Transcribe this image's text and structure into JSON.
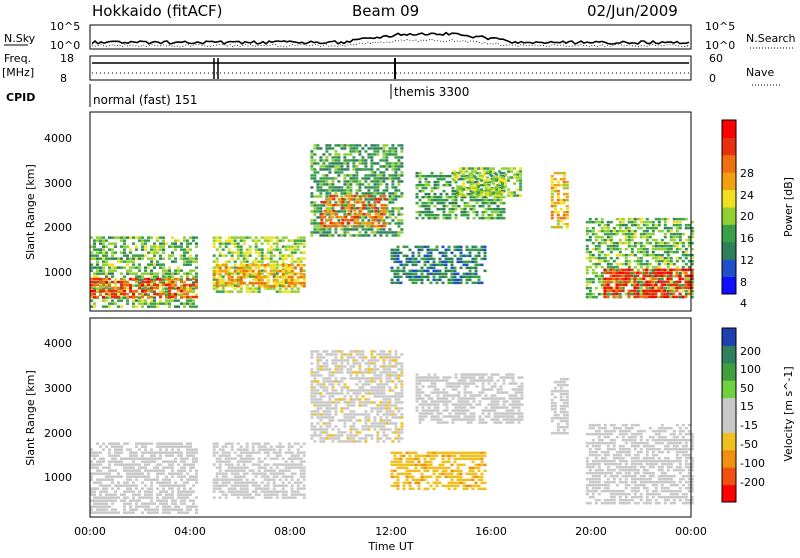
{
  "header": {
    "radar": "Hokkaido (fitACF)",
    "beam": "Beam 09",
    "date": "02/Jun/2009"
  },
  "sky_panel": {
    "left_label": "N.Sky",
    "left_ticks": [
      "10^5",
      "10^0"
    ],
    "right_ticks": [
      "10^5",
      "10^0"
    ],
    "right_label": "N.Search"
  },
  "freq_panel": {
    "left_label_line1": "Freq.",
    "left_label_line2": "[MHz]",
    "left_ticks": [
      "18",
      "8"
    ],
    "right_ticks": [
      "60",
      "0"
    ],
    "right_label": "Nave"
  },
  "cpid": {
    "label": "CPID",
    "modes": [
      {
        "start_hour": 0,
        "text": "normal (fast) 151"
      },
      {
        "start_hour": 12,
        "text": "themis 3300"
      }
    ]
  },
  "x_axis": {
    "ticks": [
      "00:00",
      "04:00",
      "08:00",
      "12:00",
      "16:00",
      "20:00",
      "00:00"
    ],
    "label": "Time UT",
    "range_hours": [
      0,
      24
    ]
  },
  "power_panel": {
    "ylabel": "Slant Range [km]",
    "yticks": [
      "4000",
      "3000",
      "2000",
      "1000"
    ],
    "colorbar_label": "Power [dB]",
    "colorbar_ticks": [
      "28",
      "24",
      "20",
      "16",
      "12",
      "8",
      "4"
    ],
    "colors": [
      "#1010ff",
      "#2050c8",
      "#2f7f5a",
      "#38a048",
      "#90d030",
      "#f0e020",
      "#f0a010",
      "#f07010",
      "#e83010",
      "#ff0000"
    ]
  },
  "velocity_panel": {
    "ylabel": "Slant Range [km]",
    "yticks": [
      "4000",
      "3000",
      "2000",
      "1000"
    ],
    "colorbar_label": "Velocity [m s^-1]",
    "colorbar_ticks": [
      "200",
      "100",
      "50",
      "15",
      "-15",
      "-50",
      "-100",
      "-200"
    ],
    "colors": [
      "#2040b0",
      "#308060",
      "#40a040",
      "#70d040",
      "#c8c8c8",
      "#c8c8c8",
      "#f0c020",
      "#f09010",
      "#f05010",
      "#ff0000"
    ]
  },
  "chart_data": {
    "type": "heatmap",
    "x_unit": "hours UT",
    "y_unit": "slant range km",
    "xlim": [
      0,
      24
    ],
    "ylim": [
      180,
      4500
    ],
    "power_regions": [
      {
        "t0": 0.0,
        "t1": 4.2,
        "r0": 300,
        "r1": 1800,
        "power": 14
      },
      {
        "t0": 0.0,
        "t1": 4.2,
        "r0": 450,
        "r1": 900,
        "power": 26
      },
      {
        "t0": 4.9,
        "t1": 8.6,
        "r0": 600,
        "r1": 1800,
        "power": 16
      },
      {
        "t0": 4.9,
        "t1": 8.6,
        "r0": 700,
        "r1": 1200,
        "power": 22
      },
      {
        "t0": 8.8,
        "t1": 12.5,
        "r0": 1800,
        "r1": 3800,
        "power": 12
      },
      {
        "t0": 9.2,
        "t1": 11.8,
        "r0": 2000,
        "r1": 2700,
        "power": 24
      },
      {
        "t0": 12.0,
        "t1": 15.8,
        "r0": 800,
        "r1": 1600,
        "power": 10
      },
      {
        "t0": 13.0,
        "t1": 16.5,
        "r0": 2200,
        "r1": 3200,
        "power": 12
      },
      {
        "t0": 14.5,
        "t1": 17.2,
        "r0": 2700,
        "r1": 3300,
        "power": 16
      },
      {
        "t0": 18.4,
        "t1": 19.0,
        "r0": 2000,
        "r1": 3200,
        "power": 20
      },
      {
        "t0": 19.8,
        "t1": 24.0,
        "r0": 500,
        "r1": 2200,
        "power": 14
      },
      {
        "t0": 20.5,
        "t1": 24.0,
        "r0": 500,
        "r1": 1100,
        "power": 28
      }
    ],
    "velocity_regions": [
      {
        "t0": 0.0,
        "t1": 4.2,
        "r0": 300,
        "r1": 1800,
        "velocity": 0
      },
      {
        "t0": 4.9,
        "t1": 8.6,
        "r0": 600,
        "r1": 1800,
        "velocity": 0
      },
      {
        "t0": 8.8,
        "t1": 12.5,
        "r0": 1800,
        "r1": 3800,
        "velocity": -5
      },
      {
        "t0": 12.0,
        "t1": 15.8,
        "r0": 800,
        "r1": 1600,
        "velocity": -40
      },
      {
        "t0": 13.0,
        "t1": 17.2,
        "r0": 2200,
        "r1": 3300,
        "velocity": 0
      },
      {
        "t0": 18.4,
        "t1": 19.0,
        "r0": 2000,
        "r1": 3200,
        "velocity": 0
      },
      {
        "t0": 19.8,
        "t1": 24.0,
        "r0": 500,
        "r1": 2200,
        "velocity": 0
      }
    ]
  }
}
